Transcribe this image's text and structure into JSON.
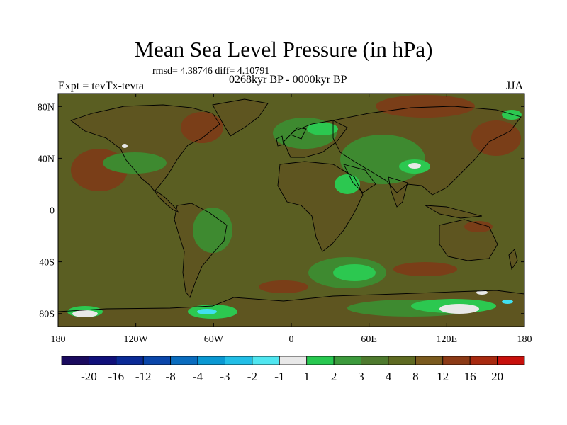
{
  "figure": {
    "title": "Mean Sea Level Pressure (in hPa)",
    "stats": "rmsd= 4.38746 diff= 4.10791",
    "subtitle": "0268kyr BP - 0000kyr BP",
    "left_label": "Expt = tevTx-tevta",
    "right_label": "JJA"
  },
  "axes": {
    "lat_ticks": [
      {
        "value": 80,
        "label": "80N"
      },
      {
        "value": 40,
        "label": "40N"
      },
      {
        "value": 0,
        "label": "0"
      },
      {
        "value": -40,
        "label": "40S"
      },
      {
        "value": -80,
        "label": "80S"
      }
    ],
    "lon_ticks": [
      {
        "value": -180,
        "label": "180"
      },
      {
        "value": -120,
        "label": "120W"
      },
      {
        "value": -60,
        "label": "60W"
      },
      {
        "value": 0,
        "label": "0"
      },
      {
        "value": 60,
        "label": "60E"
      },
      {
        "value": 120,
        "label": "120E"
      },
      {
        "value": 180,
        "label": "180"
      }
    ],
    "lon_range": [
      -180,
      180
    ],
    "lat_range": [
      -90,
      90
    ]
  },
  "colorbar": {
    "labels": [
      "-20",
      "-16",
      "-12",
      "-8",
      "-4",
      "-3",
      "-2",
      "-1",
      "1",
      "2",
      "3",
      "4",
      "8",
      "12",
      "16",
      "20"
    ],
    "colors": [
      "#1a0a5e",
      "#10107a",
      "#0a2a96",
      "#0a46aa",
      "#0a6cbe",
      "#0a98d2",
      "#22bee6",
      "#50e6f0",
      "#e8e8e8",
      "#28c850",
      "#3c9a3c",
      "#4e7a2e",
      "#5e6a22",
      "#7a5a1e",
      "#8c3a16",
      "#a82a10",
      "#c8100c"
    ]
  },
  "map_colors": {
    "background": "#5a5e22",
    "land_mass": "#5e5520",
    "warm": "#7a3e18",
    "mid_green": "#3e8a30",
    "bright_green": "#2cc850",
    "white": "#e8e8e8",
    "cyan": "#40e0f0",
    "coast": "#000000"
  }
}
